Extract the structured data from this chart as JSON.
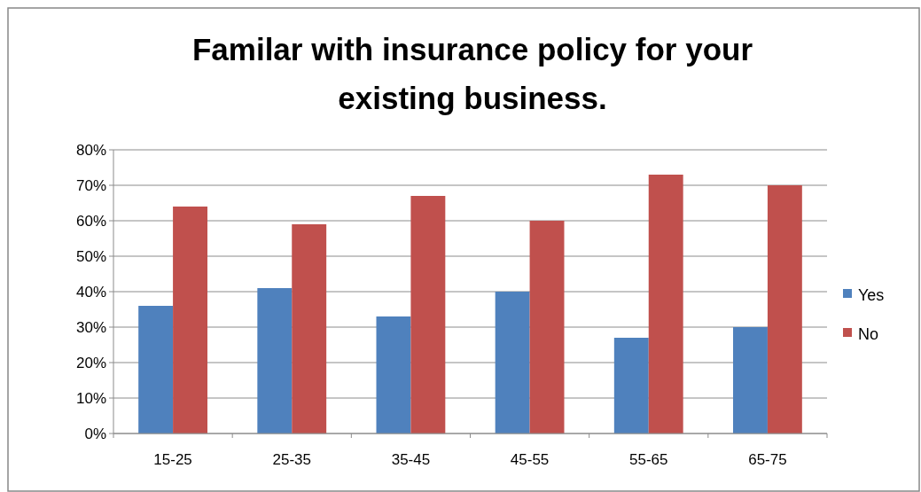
{
  "chart_data": {
    "type": "bar",
    "title": "Familar with insurance policy for your existing business.",
    "categories": [
      "15-25",
      "25-35",
      "35-45",
      "45-55",
      "55-65",
      "65-75"
    ],
    "series": [
      {
        "name": "Yes",
        "color": "#4f81bd",
        "values": [
          36,
          41,
          33,
          40,
          27,
          30
        ]
      },
      {
        "name": "No",
        "color": "#c0504d",
        "values": [
          64,
          59,
          67,
          60,
          73,
          70
        ]
      }
    ],
    "ylim": [
      0,
      80
    ],
    "yticks": [
      {
        "value": 0,
        "label": "0%"
      },
      {
        "value": 10,
        "label": "10%"
      },
      {
        "value": 20,
        "label": "20%"
      },
      {
        "value": 30,
        "label": "30%"
      },
      {
        "value": 40,
        "label": "40%"
      },
      {
        "value": 50,
        "label": "50%"
      },
      {
        "value": 60,
        "label": "60%"
      },
      {
        "value": 70,
        "label": "70%"
      },
      {
        "value": 80,
        "label": "80%"
      }
    ],
    "grid": "y",
    "legend": "right"
  }
}
